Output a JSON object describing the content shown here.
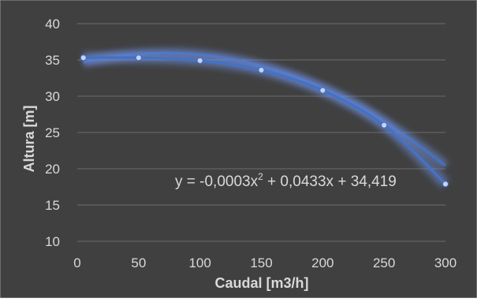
{
  "chart_data": {
    "type": "scatter",
    "title": "",
    "xlabel": "Caudal [m3/h]",
    "ylabel": "Altura [m]",
    "xlim": [
      0,
      300
    ],
    "ylim": [
      10,
      40
    ],
    "x_ticks": [
      "0",
      "50",
      "100",
      "150",
      "200",
      "250",
      "300"
    ],
    "y_ticks": [
      "10",
      "15",
      "20",
      "25",
      "30",
      "35",
      "40"
    ],
    "grid": true,
    "legend": "none",
    "series": [
      {
        "x": [
          5,
          50,
          100,
          150,
          200,
          250,
          300
        ],
        "y": [
          35.3,
          35.3,
          34.9,
          33.6,
          30.8,
          26.0,
          17.9
        ],
        "line": "smooth"
      }
    ],
    "trendline": {
      "type": "polynomial",
      "order": 2,
      "coefficients": [
        -0.0003,
        0.0433,
        34.419
      ],
      "equation_text": {
        "prefix": "y = -0,0003x",
        "superscript": "2",
        "suffix": " + 0,0433x + 34,419"
      }
    },
    "colors": {
      "background": "#404040",
      "grid": "#6b6b6b",
      "axis_text": "#d9d9d9",
      "series": "#4472c4",
      "glow": "#6f8fe0",
      "marker": "#c9d3f2"
    }
  }
}
